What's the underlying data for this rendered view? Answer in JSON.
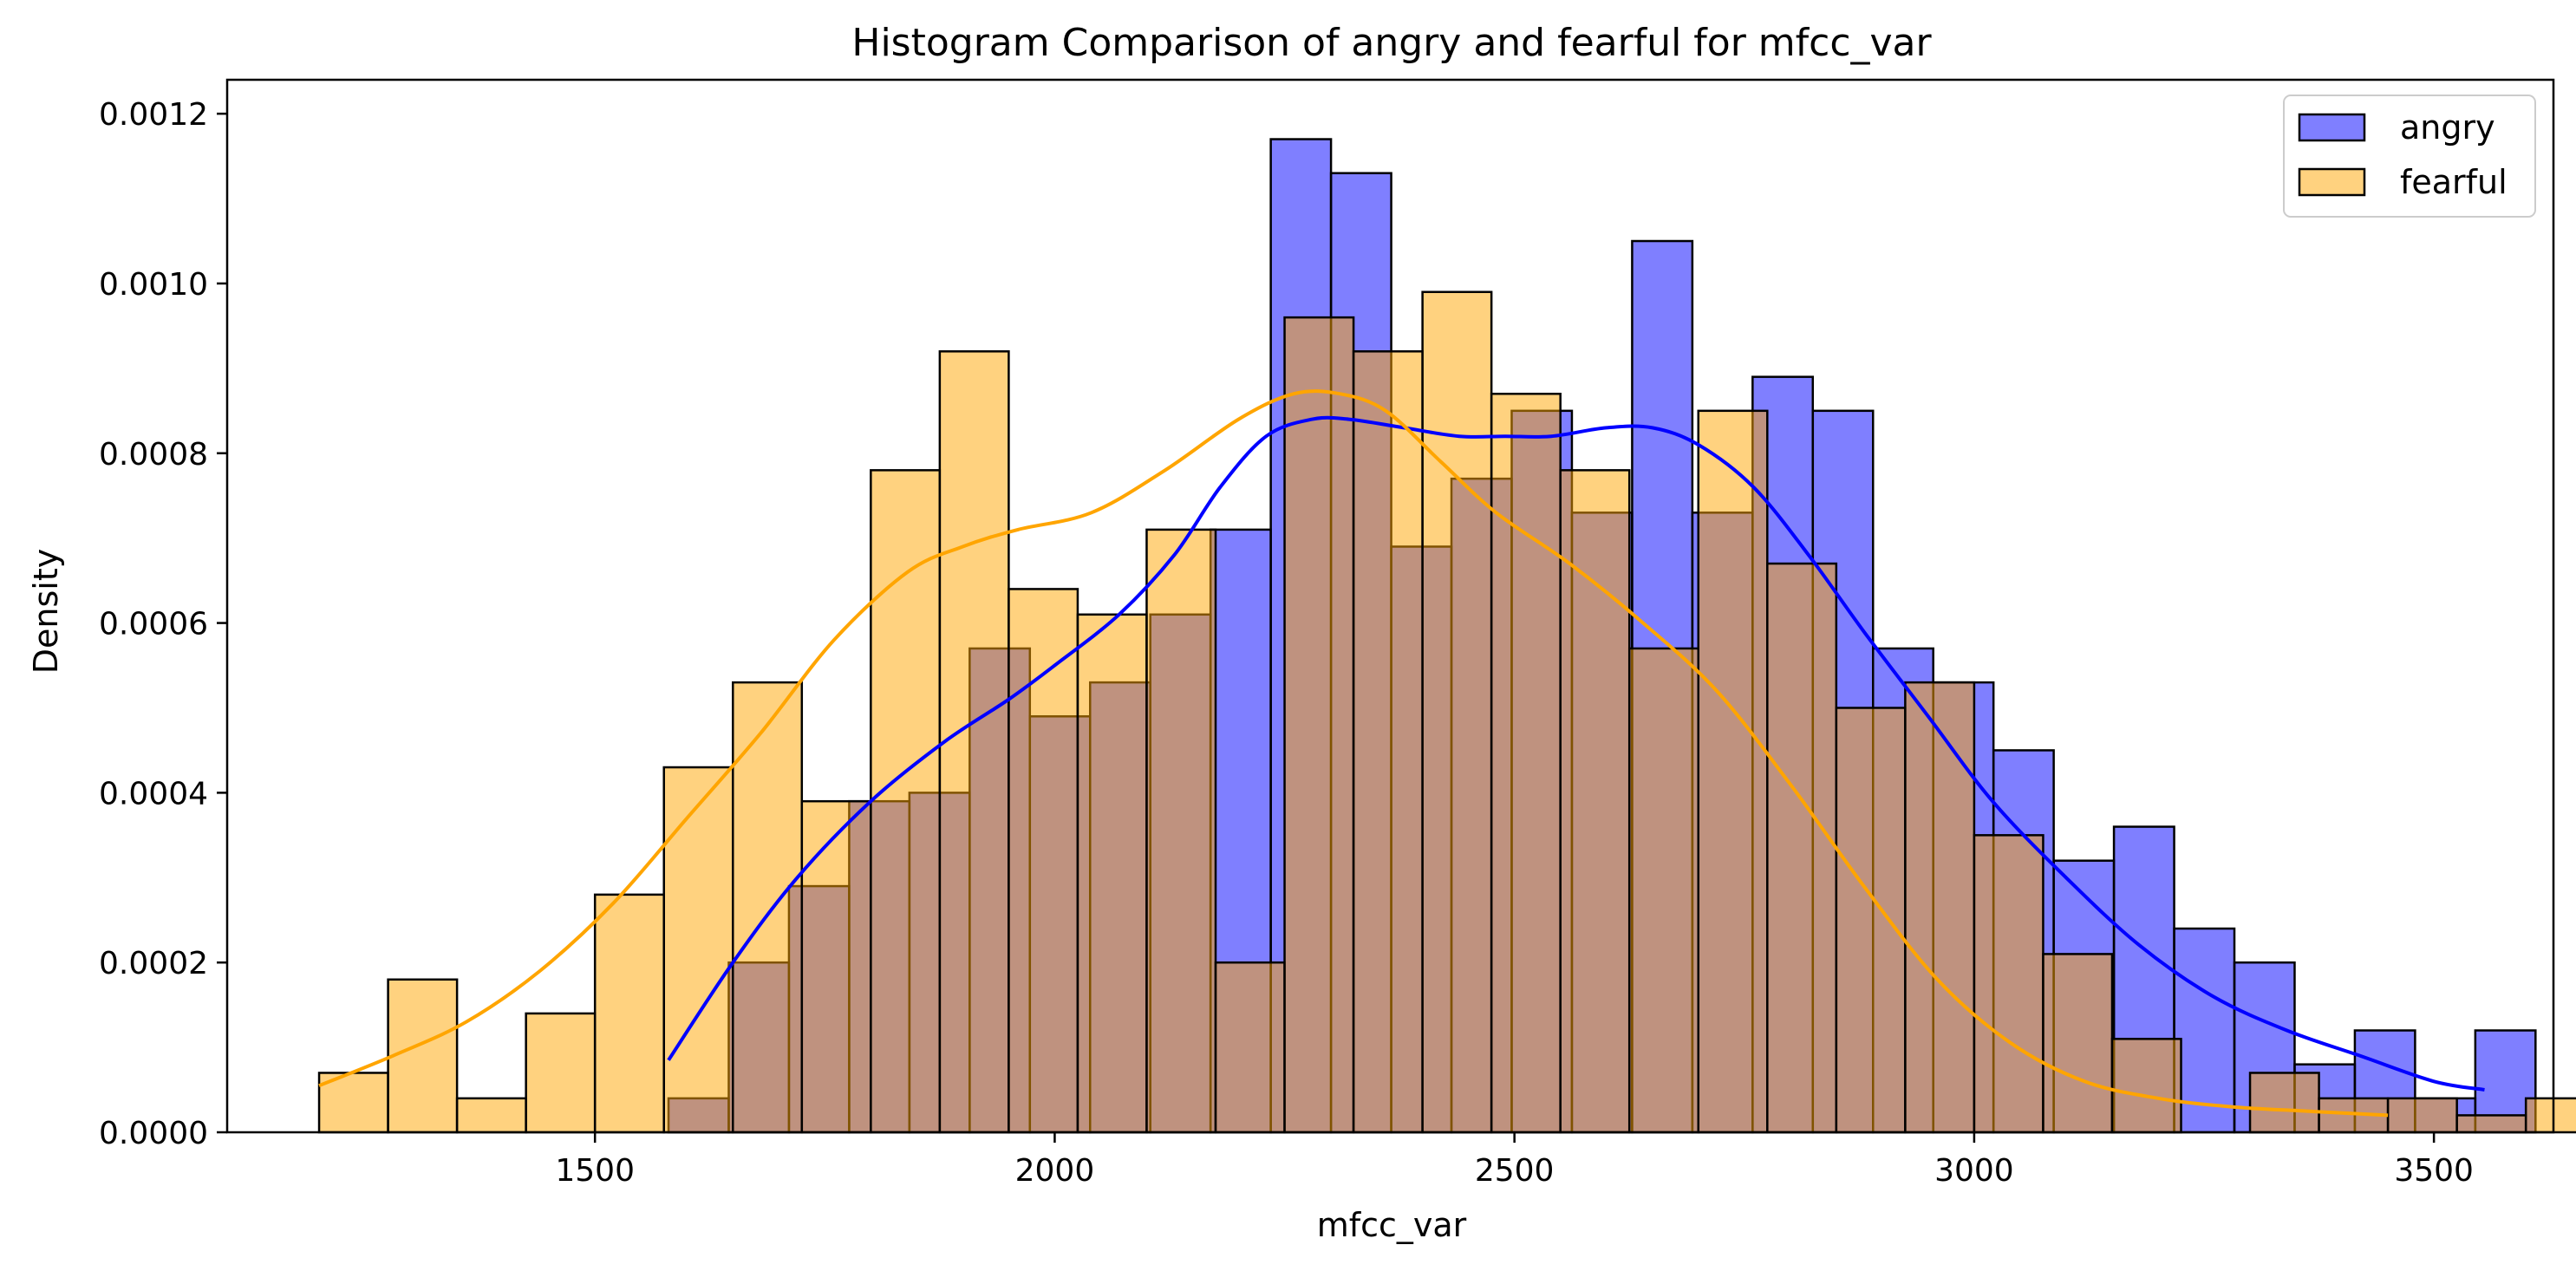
{
  "chart_data": {
    "type": "histogram",
    "title": "Histogram Comparison of angry and fearful for mfcc_var",
    "xlabel": "mfcc_var",
    "ylabel": "Density",
    "xlim": [
      1100,
      3630
    ],
    "ylim": [
      0,
      0.00124
    ],
    "xticks": [
      1500,
      2000,
      2500,
      3000,
      3500
    ],
    "xtick_labels": [
      "1500",
      "2000",
      "2500",
      "3000",
      "3500"
    ],
    "yticks": [
      0,
      0.0002,
      0.0004,
      0.0006,
      0.0008,
      0.001,
      0.0012
    ],
    "ytick_labels": [
      "0.0000",
      "0.0002",
      "0.0004",
      "0.0006",
      "0.0008",
      "0.0010",
      "0.0012"
    ],
    "grid": false,
    "legend_position": "top-right",
    "series": [
      {
        "name": "angry",
        "color": "#0000ff",
        "fill_opacity": 0.5,
        "kde_color": "#0000ff",
        "bin_start": 1580,
        "bin_width": 65.5,
        "values": [
          4e-05,
          0.0002,
          0.00029,
          0.00039,
          0.0004,
          0.00057,
          0.00049,
          0.00053,
          0.00061,
          0.00071,
          0.00117,
          0.00113,
          0.00069,
          0.00077,
          0.00085,
          0.00073,
          0.00105,
          0.00073,
          0.00089,
          0.00085,
          0.00057,
          0.00053,
          0.00045,
          0.00032,
          0.00036,
          0.00024,
          0.0002,
          8e-05,
          0.00012,
          4e-05,
          0.00012
        ],
        "kde": {
          "x": [
            1580,
            1650,
            1720,
            1800,
            1880,
            1950,
            2000,
            2070,
            2130,
            2180,
            2230,
            2280,
            2320,
            2380,
            2440,
            2490,
            2540,
            2600,
            2650,
            2700,
            2760,
            2820,
            2880,
            2950,
            3020,
            3100,
            3180,
            3260,
            3340,
            3420,
            3500,
            3555
          ],
          "y": [
            8.5e-05,
            0.0002,
            0.0003,
            0.00039,
            0.00046,
            0.00051,
            0.00055,
            0.00061,
            0.00068,
            0.00076,
            0.00082,
            0.00084,
            0.00084,
            0.00083,
            0.00082,
            0.00082,
            0.00082,
            0.00083,
            0.00083,
            0.00081,
            0.00076,
            0.00068,
            0.00059,
            0.00049,
            0.00039,
            0.0003,
            0.00022,
            0.00016,
            0.00012,
            9e-05,
            6e-05,
            5e-05
          ]
        }
      },
      {
        "name": "fearful",
        "color": "#ffa500",
        "fill_opacity": 0.5,
        "kde_color": "#ffa500",
        "bin_start": 1200,
        "bin_width": 75,
        "values": [
          7e-05,
          0.00018,
          4e-05,
          0.00014,
          0.00028,
          0.00043,
          0.00053,
          0.00039,
          0.00078,
          0.00092,
          0.00064,
          0.00061,
          0.00071,
          0.0002,
          0.00096,
          0.00092,
          0.00099,
          0.00087,
          0.00078,
          0.00057,
          0.00085,
          0.00067,
          0.0005,
          0.00053,
          0.00035,
          0.00021,
          0.00011,
          0.0,
          7e-05,
          4e-05,
          4e-05,
          2e-05,
          4e-05
        ],
        "kde": {
          "x": [
            1200,
            1280,
            1360,
            1440,
            1520,
            1600,
            1680,
            1760,
            1840,
            1900,
            1960,
            2040,
            2120,
            2200,
            2260,
            2310,
            2360,
            2420,
            2480,
            2560,
            2640,
            2720,
            2800,
            2880,
            2960,
            3040,
            3120,
            3200,
            3280,
            3360,
            3450
          ],
          "y": [
            5.5e-05,
            9e-05,
            0.00013,
            0.00019,
            0.00027,
            0.00037,
            0.00047,
            0.00058,
            0.00066,
            0.00069,
            0.00071,
            0.00073,
            0.00078,
            0.00084,
            0.00087,
            0.00087,
            0.00085,
            0.00079,
            0.00073,
            0.00067,
            0.0006,
            0.00052,
            0.00041,
            0.00029,
            0.00018,
            0.000105,
            6e-05,
            4e-05,
            3e-05,
            2.5e-05,
            2e-05
          ]
        }
      }
    ]
  }
}
